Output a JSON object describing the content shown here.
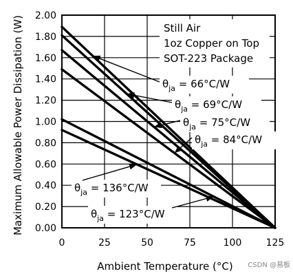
{
  "chart_data": {
    "type": "line",
    "title": "",
    "xlabel": "Ambient Temperature (°C)",
    "ylabel": "Maximum Allowable Power Dissipation (W)",
    "xlim": [
      0,
      125
    ],
    "ylim": [
      0,
      2.0
    ],
    "x_ticks": [
      "0",
      "25",
      "50",
      "75",
      "100",
      "125"
    ],
    "y_ticks": [
      "0.00",
      "0.20",
      "0.40",
      "0.60",
      "0.80",
      "1.00",
      "1.20",
      "1.40",
      "1.60",
      "1.80",
      "2.00"
    ],
    "grid": true,
    "notes": [
      "Still Air",
      "1oz Copper on Top",
      "SOT-223 Package"
    ],
    "series": [
      {
        "name": "θja = 66°C/W",
        "theta": "θ",
        "sub": "ja",
        "value": " = 66°C/W",
        "x": [
          0,
          125
        ],
        "y": [
          1.89,
          0
        ]
      },
      {
        "name": "θja = 69°C/W",
        "theta": "θ",
        "sub": "ja",
        "value": " = 69°C/W",
        "x": [
          0,
          125
        ],
        "y": [
          1.81,
          0
        ]
      },
      {
        "name": "θja = 75°C/W",
        "theta": "θ",
        "sub": "ja",
        "value": " = 75°C/W",
        "x": [
          0,
          125
        ],
        "y": [
          1.67,
          0
        ]
      },
      {
        "name": "θja = 84°C/W",
        "theta": "θ",
        "sub": "ja",
        "value": " = 84°C/W",
        "x": [
          0,
          125
        ],
        "y": [
          1.49,
          0
        ]
      },
      {
        "name": "θja = 123°C/W",
        "theta": "θ",
        "sub": "ja",
        "value": " = 123°C/W",
        "x": [
          0,
          125
        ],
        "y": [
          1.02,
          0
        ]
      },
      {
        "name": "θja = 136°C/W",
        "theta": "θ",
        "sub": "ja",
        "value": " = 136°C/W",
        "x": [
          0,
          125
        ],
        "y": [
          0.92,
          0
        ]
      }
    ]
  },
  "watermark": "CSDN @易板"
}
